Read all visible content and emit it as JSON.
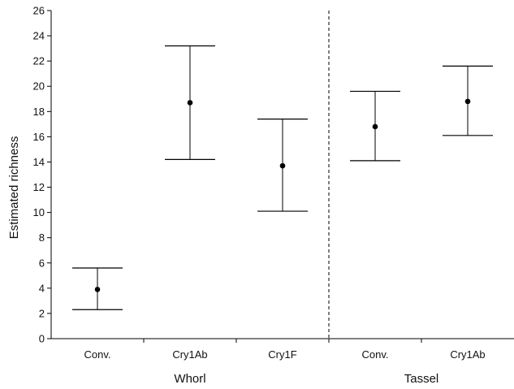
{
  "chart_data": {
    "type": "scatter",
    "title": "",
    "xlabel": "",
    "ylabel": "Estimated richness",
    "ylim": [
      0,
      26
    ],
    "yticks": [
      0,
      2,
      4,
      6,
      8,
      10,
      12,
      14,
      16,
      18,
      20,
      22,
      24,
      26
    ],
    "categories": [
      "Conv.",
      "Cry1Ab",
      "Cry1F",
      "Conv.",
      "Cry1Ab"
    ],
    "groups": [
      {
        "label": "Whorl",
        "members": [
          0,
          1,
          2
        ]
      },
      {
        "label": "Tassel",
        "members": [
          3,
          4
        ]
      }
    ],
    "series": [
      {
        "values": [
          3.9,
          18.7,
          13.7,
          16.8,
          18.8
        ],
        "lower": [
          2.3,
          14.2,
          10.1,
          14.1,
          16.1
        ],
        "upper": [
          5.6,
          23.2,
          17.4,
          19.6,
          21.6
        ]
      }
    ],
    "divider": "dashed line between Cry1F and Conv.",
    "grid": false,
    "colors": {
      "marks": "#000000",
      "axis": "#000000"
    }
  }
}
